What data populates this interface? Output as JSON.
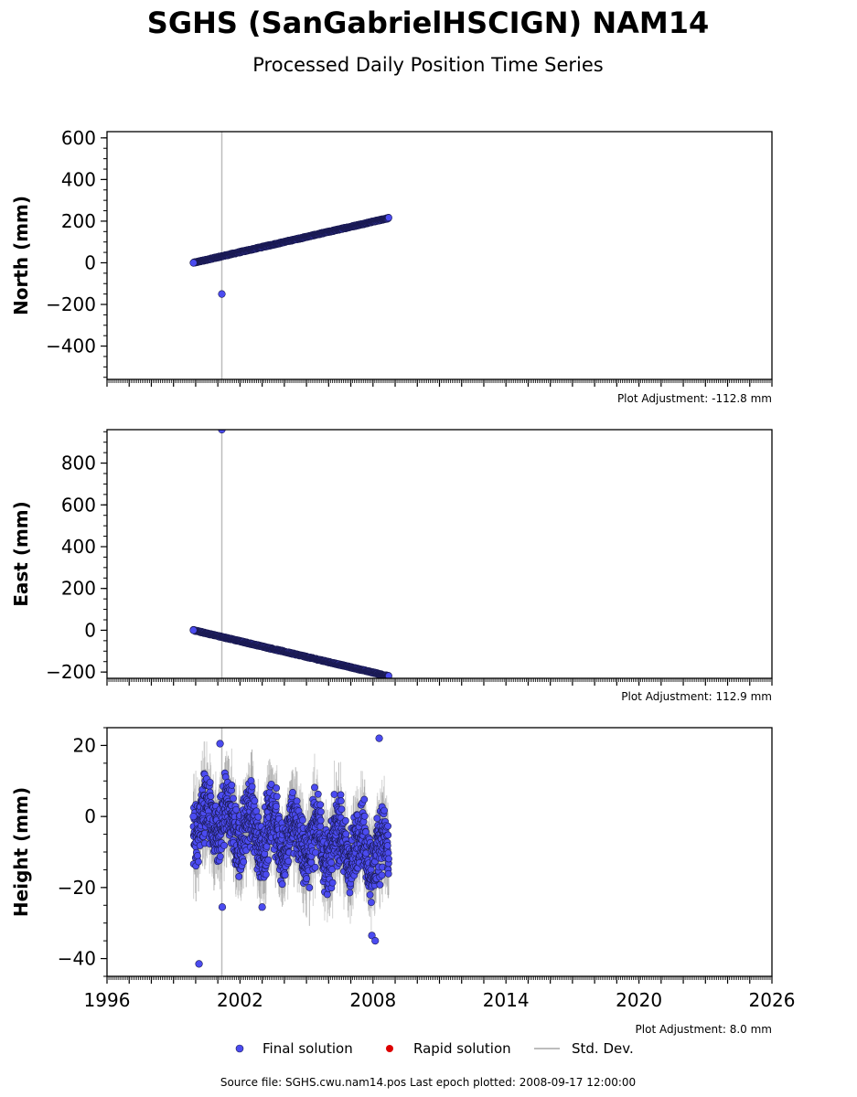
{
  "header": {
    "title": "SGHS (SanGabrielHSCIGN) NAM14",
    "subtitle": "Processed Daily Position Time Series"
  },
  "legend": {
    "final_label": "Final solution",
    "rapid_label": "Rapid solution",
    "std_label": "Std. Dev."
  },
  "footer": {
    "source": "Source file: SGHS.cwu.nam14.pos  Last epoch plotted: 2008-09-17 12:00:00"
  },
  "colors": {
    "final": "#4b4bf0",
    "final_edge": "#1a1a50",
    "rapid": "#dd0000",
    "std": "#bdbdbd"
  },
  "chart_data": [
    {
      "type": "scatter",
      "name": "north",
      "ylabel": "North (mm)",
      "xlim": [
        1996,
        2026
      ],
      "ylim": [
        -560,
        630
      ],
      "yticks": [
        600,
        400,
        200,
        0,
        -200,
        -400
      ],
      "adjustment": "Plot Adjustment: -112.8 mm",
      "x_range": [
        1999.9,
        2008.71
      ],
      "trend": [
        0,
        215
      ],
      "outliers": [
        {
          "x": 2001.18,
          "y": -150
        }
      ],
      "std_line_x": 2001.18
    },
    {
      "type": "scatter",
      "name": "east",
      "ylabel": "East (mm)",
      "xlim": [
        1996,
        2026
      ],
      "ylim": [
        -230,
        960
      ],
      "yticks": [
        800,
        600,
        400,
        200,
        0,
        -200
      ],
      "adjustment": "Plot Adjustment: 112.9 mm",
      "x_range": [
        1999.9,
        2008.71
      ],
      "trend": [
        0,
        -220
      ],
      "outliers": [
        {
          "x": 2001.18,
          "y": 960
        }
      ],
      "std_line_x": 2001.18
    },
    {
      "type": "scatter",
      "name": "height",
      "ylabel": "Height (mm)",
      "xlim": [
        1996,
        2026
      ],
      "ylim": [
        -45,
        25
      ],
      "yticks": [
        20,
        0,
        -20,
        -40
      ],
      "xticks": [
        1996,
        2002,
        2008,
        2014,
        2020,
        2026
      ],
      "adjustment": "Plot Adjustment: 8.0 mm",
      "x_range": [
        1999.9,
        2008.71
      ],
      "trend": [
        0,
        -12
      ],
      "outliers": [
        {
          "x": 2000.15,
          "y": -41.5
        },
        {
          "x": 2001.1,
          "y": 20.5
        },
        {
          "x": 2001.2,
          "y": -25.5
        },
        {
          "x": 2008.28,
          "y": 22
        },
        {
          "x": 2007.95,
          "y": -33.5
        },
        {
          "x": 2008.1,
          "y": -35
        },
        {
          "x": 2003.0,
          "y": -25.5
        }
      ],
      "std_line_x": 2001.18
    }
  ]
}
